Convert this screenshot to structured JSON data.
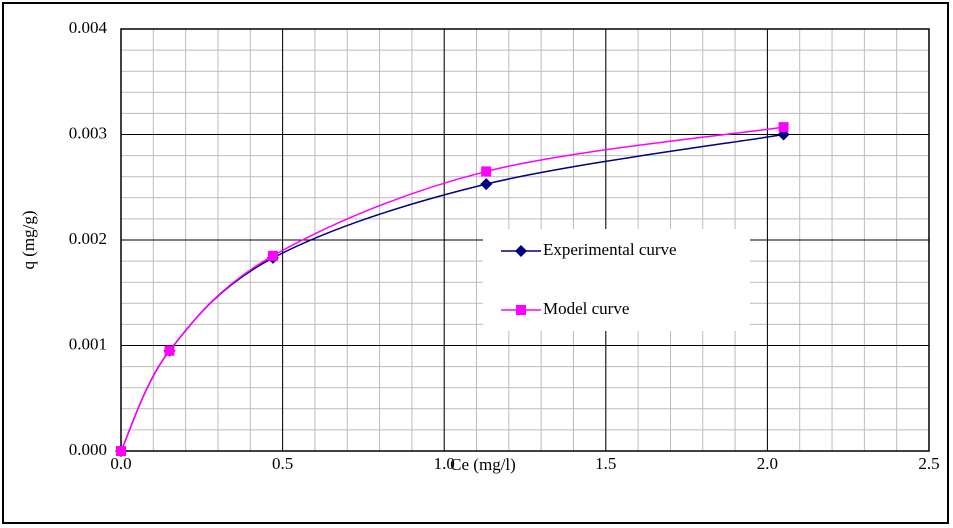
{
  "chart_data": {
    "type": "line",
    "x_label": "Ce (mg/l)",
    "y_label": "q (mg/g)",
    "series": [
      {
        "name": "Experimental curve",
        "color": "#000080",
        "marker": "diamond",
        "x": [
          0,
          0.15,
          0.47,
          1.13,
          2.05
        ],
        "values": [
          0,
          0.00095,
          0.00183,
          0.00253,
          0.003
        ]
      },
      {
        "name": "Model curve",
        "color": "#ff00ff",
        "marker": "square",
        "x": [
          0,
          0.15,
          0.47,
          1.13,
          2.05
        ],
        "values": [
          0,
          0.00095,
          0.00185,
          0.00265,
          0.00307
        ]
      }
    ],
    "xlim": [
      0,
      2.5
    ],
    "xticks": [
      {
        "value": 0,
        "label": "0.0"
      },
      0.5,
      {
        "value": 1,
        "label": "1.0"
      },
      1.5,
      {
        "value": 2,
        "label": "2.0"
      },
      2.5
    ],
    "ylim": [
      0,
      0.004
    ],
    "yticks": [
      {
        "value": 0,
        "label": "0.000"
      },
      0.001,
      0.002,
      0.003,
      0.004
    ],
    "grid": true,
    "minor_grid": {
      "x": 0.1,
      "y": 0.0002
    },
    "legend": "right"
  }
}
